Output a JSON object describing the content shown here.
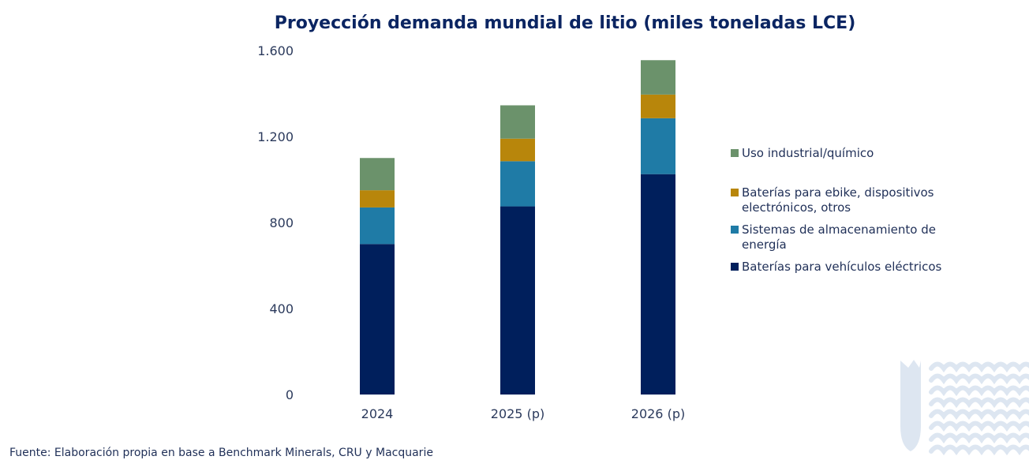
{
  "chart_data": {
    "type": "bar",
    "stacked": true,
    "title": "Proyección demanda mundial de litio (miles toneladas LCE)",
    "categories": [
      "2024",
      "2025 (p)",
      "2026 (p)"
    ],
    "ylim": [
      0,
      1600
    ],
    "yticks": [
      0,
      400,
      800,
      1200,
      1600
    ],
    "ytick_labels": [
      "0",
      "400",
      "800",
      "1.200",
      "1.600"
    ],
    "grid": false,
    "legend_position": "right",
    "series": [
      {
        "name": "Baterías para vehículos eléctricos",
        "color": "#001f5c",
        "values": [
          700,
          875,
          1025
        ]
      },
      {
        "name": "Sistemas de almacenamiento de energía",
        "color": "#1f7ba6",
        "values": [
          170,
          210,
          260
        ]
      },
      {
        "name": "Baterías para ebike, dispositivos electrónicos, otros",
        "color": "#b8860b",
        "values": [
          80,
          105,
          110
        ]
      },
      {
        "name": "Uso industrial/químico",
        "color": "#6b926b",
        "values": [
          150,
          155,
          160
        ]
      }
    ],
    "legend_items": [
      {
        "lines": [
          "Uso industrial/químico"
        ],
        "color": "#6b926b"
      },
      {
        "lines": [
          "Baterías para ebike, dispositivos",
          "electrónicos, otros"
        ],
        "color": "#b8860b"
      },
      {
        "lines": [
          "Sistemas de almacenamiento de",
          "energía"
        ],
        "color": "#1f7ba6"
      },
      {
        "lines": [
          "Baterías para vehículos eléctricos"
        ],
        "color": "#001f5c"
      }
    ]
  },
  "source": "Fuente: Elaboración propia en base a Benchmark Minerals, CRU y Macquarie",
  "logo": {
    "icon": "wave-crest-logo-icon",
    "color": "#dde6f1"
  }
}
